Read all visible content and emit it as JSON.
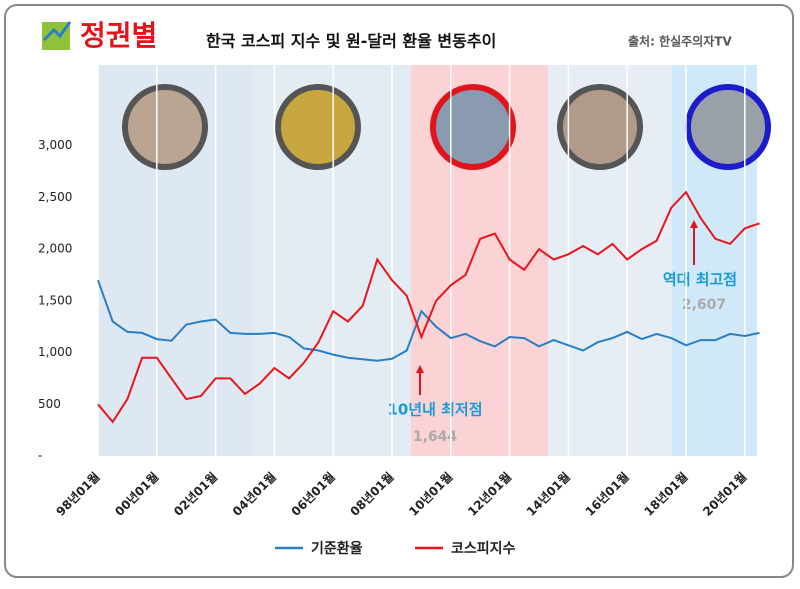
{
  "chart_data": {
    "type": "line",
    "title": "정권별",
    "subtitle": "한국 코스피 지수 및 원-달러 환율 변동추이",
    "source": "출처: 한실주의자TV",
    "categories": [
      "98년01월",
      null,
      null,
      null,
      "00년01월",
      null,
      null,
      null,
      "02년01월",
      null,
      null,
      null,
      "04년01월",
      null,
      null,
      null,
      "06년01월",
      null,
      null,
      null,
      "08년01월",
      null,
      null,
      null,
      "10년01월",
      null,
      null,
      null,
      "12년01월",
      null,
      null,
      null,
      "14년01월",
      null,
      null,
      null,
      "16년01월",
      null,
      null,
      null,
      "18년01월",
      null,
      null,
      null,
      "20년01월",
      null
    ],
    "series": [
      {
        "name": "기준환율",
        "color": "#2a7fc4",
        "values": [
          1700,
          1300,
          1200,
          1190,
          1130,
          1115,
          1270,
          1300,
          1320,
          1190,
          1180,
          1180,
          1190,
          1150,
          1040,
          1020,
          980,
          950,
          935,
          920,
          940,
          1020,
          1400,
          1250,
          1140,
          1180,
          1110,
          1060,
          1150,
          1140,
          1060,
          1120,
          1070,
          1020,
          1100,
          1140,
          1200,
          1130,
          1180,
          1140,
          1070,
          1120,
          1120,
          1180,
          1160,
          1190
        ]
      },
      {
        "name": "코스피지수",
        "color": "#e8161b",
        "values": [
          500,
          330,
          550,
          950,
          950,
          750,
          550,
          580,
          750,
          750,
          600,
          700,
          850,
          750,
          900,
          1100,
          1400,
          1300,
          1450,
          1900,
          1700,
          1550,
          1150,
          1500,
          1650,
          1750,
          2100,
          2150,
          1900,
          1800,
          2000,
          1900,
          1950,
          2030,
          1950,
          2050,
          1900,
          2000,
          2080,
          2400,
          2550,
          2300,
          2100,
          2050,
          2200,
          2250
        ]
      }
    ],
    "ylim": [
      0,
      3780
    ],
    "yticks": [
      {
        "value": 0,
        "label": "-"
      },
      500,
      {
        "value": 1000,
        "label": "1,000"
      },
      {
        "value": 1500,
        "label": "1,500"
      },
      {
        "value": 2000,
        "label": "2,000"
      },
      {
        "value": 2500,
        "label": "2,500"
      },
      {
        "value": 3000,
        "label": "3,000"
      }
    ],
    "annotations": [
      {
        "text": "역대 최고점",
        "value_label": "2,607"
      },
      {
        "text": "10년내 최저점",
        "value_label": "1,644"
      }
    ],
    "legend": "bottom"
  }
}
